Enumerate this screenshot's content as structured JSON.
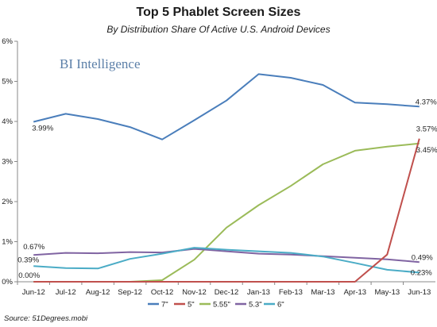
{
  "chart_data": {
    "type": "line",
    "title": "Top 5 Phablet Screen Sizes",
    "subtitle": "By Distribution Share Of Active U.S. Android Devices",
    "source": "Source: 51Degrees.mobi",
    "watermark": "BI Intelligence",
    "categories": [
      "Jun-12",
      "Jul-12",
      "Aug-12",
      "Sep-12",
      "Oct-12",
      "Nov-12",
      "Dec-12",
      "Jan-13",
      "Feb-13",
      "Mar-13",
      "Apr-13",
      "May-13",
      "Jun-13"
    ],
    "y_ticks": [
      "0%",
      "1%",
      "2%",
      "3%",
      "4%",
      "5%",
      "6%"
    ],
    "ylim": [
      0,
      6
    ],
    "grid": false,
    "legend_position": "bottom",
    "series": [
      {
        "name": "7\"",
        "color": "#4a7ebb",
        "values": [
          3.99,
          4.19,
          4.06,
          3.86,
          3.55,
          4.03,
          4.52,
          5.18,
          5.09,
          4.91,
          4.47,
          4.43,
          4.37
        ]
      },
      {
        "name": "5\"",
        "color": "#c0504d",
        "values": [
          0.0,
          0.0,
          0.0,
          0.0,
          0.0,
          0.0,
          0.0,
          0.0,
          0.0,
          0.0,
          0.0,
          0.68,
          3.57
        ]
      },
      {
        "name": "5.55\"",
        "color": "#9bbb59",
        "values": [
          0.0,
          0.0,
          0.0,
          0.0,
          0.04,
          0.55,
          1.35,
          1.91,
          2.39,
          2.93,
          3.27,
          3.37,
          3.45
        ]
      },
      {
        "name": "5.3\"",
        "color": "#8064a2",
        "values": [
          0.67,
          0.72,
          0.71,
          0.74,
          0.73,
          0.82,
          0.76,
          0.7,
          0.68,
          0.64,
          0.6,
          0.56,
          0.49
        ]
      },
      {
        "name": "6\"",
        "color": "#4bacc6",
        "values": [
          0.39,
          0.34,
          0.33,
          0.57,
          0.7,
          0.85,
          0.8,
          0.76,
          0.72,
          0.63,
          0.47,
          0.3,
          0.23
        ]
      }
    ],
    "data_labels": [
      {
        "series": 0,
        "index": 0,
        "text": "3.99%"
      },
      {
        "series": 0,
        "index": 12,
        "text": "4.37%"
      },
      {
        "series": 1,
        "index": 12,
        "text": "3.57%"
      },
      {
        "series": 2,
        "index": 12,
        "text": "3.45%"
      },
      {
        "series": 3,
        "index": 0,
        "text": "0.67%"
      },
      {
        "series": 3,
        "index": 12,
        "text": "0.49%"
      },
      {
        "series": 4,
        "index": 0,
        "text": "0.39%"
      },
      {
        "series": 4,
        "index": 12,
        "text": "0.23%"
      },
      {
        "series": 1,
        "index": 0,
        "text": "0.00%"
      }
    ]
  }
}
